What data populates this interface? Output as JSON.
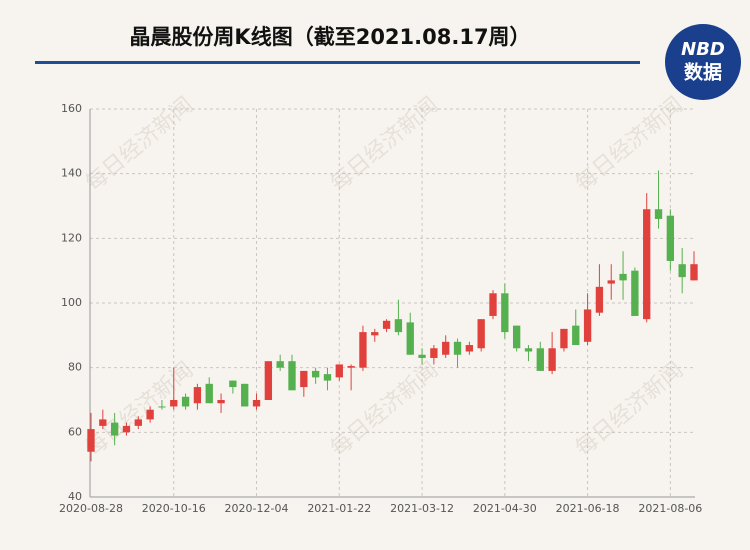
{
  "chart_data": {
    "type": "candlestick",
    "title": "晶晨股份周K线图（截至2021.08.17周）",
    "watermark": "每日经济新闻",
    "logo": {
      "brand": "NBD",
      "label": "数据"
    },
    "categories": [
      "2020-08-28",
      null,
      null,
      null,
      null,
      null,
      null,
      "2020-10-16",
      null,
      null,
      null,
      null,
      null,
      null,
      "2020-12-04",
      null,
      null,
      null,
      null,
      null,
      null,
      "2021-01-22",
      null,
      null,
      null,
      null,
      null,
      null,
      "2021-03-12",
      null,
      null,
      null,
      null,
      null,
      null,
      "2021-04-30",
      null,
      null,
      null,
      null,
      null,
      null,
      "2021-06-18",
      null,
      null,
      null,
      null,
      null,
      null,
      "2021-08-06",
      null,
      null
    ],
    "series": {
      "open": [
        54,
        62,
        63,
        60,
        62,
        64,
        68,
        68,
        71,
        69,
        75,
        69,
        76,
        75,
        68,
        70,
        82,
        82,
        74,
        79,
        78,
        77,
        80,
        80,
        90,
        92,
        95,
        94,
        84,
        83,
        84,
        88,
        85,
        86,
        96,
        103,
        93,
        86,
        86,
        79,
        86,
        93,
        88,
        97,
        106,
        109,
        110,
        95,
        129,
        127,
        112,
        107
      ],
      "high": [
        66,
        67,
        66,
        63,
        65,
        68,
        70,
        80,
        72,
        75,
        77,
        72,
        76,
        75,
        72,
        82,
        84,
        84,
        79,
        80,
        80,
        81,
        81,
        93,
        92,
        95,
        101,
        97,
        86,
        87,
        90,
        89,
        88,
        95,
        104,
        106,
        93,
        87,
        88,
        91,
        92,
        98,
        103,
        112,
        112,
        116,
        111,
        134,
        141,
        129,
        117,
        116
      ],
      "low": [
        51,
        61,
        56,
        59,
        61,
        63,
        67,
        67,
        67,
        67,
        69,
        66,
        72,
        68,
        67,
        70,
        79,
        73,
        71,
        75,
        73,
        76,
        73,
        79,
        88,
        91,
        90,
        84,
        81,
        81,
        83,
        80,
        84,
        85,
        95,
        89,
        85,
        82,
        79,
        78,
        85,
        87,
        87,
        96,
        101,
        101,
        96,
        94,
        123,
        110,
        103,
        107
      ],
      "close": [
        61,
        64,
        59,
        62,
        64,
        67,
        67.7,
        70,
        68,
        74,
        69,
        70,
        74,
        68,
        70,
        82,
        80,
        73,
        79,
        77,
        76,
        81,
        80.5,
        91,
        91,
        94.5,
        91,
        84,
        83,
        86,
        88,
        84,
        87,
        95,
        103,
        91,
        86,
        85,
        79,
        86,
        92,
        87,
        98,
        105,
        107,
        107,
        96,
        129,
        126,
        113,
        108,
        112
      ]
    },
    "up_color": "#e0413c",
    "down_color": "#55b04f",
    "ylim": [
      40,
      160
    ],
    "yticks": [
      40,
      60,
      80,
      100,
      120,
      140,
      160
    ],
    "grid": true
  }
}
